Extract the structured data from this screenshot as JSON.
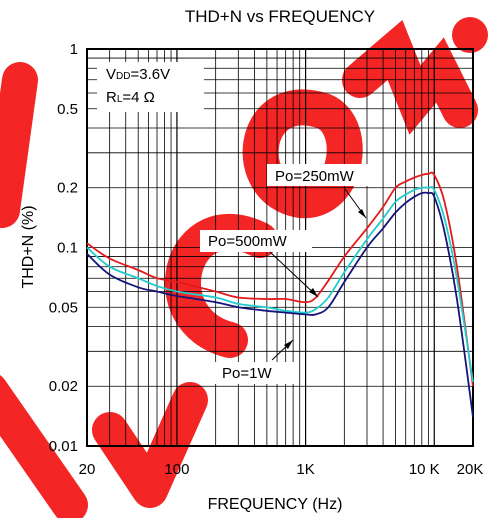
{
  "chart_data": {
    "type": "line",
    "title": "THD+N vs FREQUENCY",
    "xlabel": "FREQUENCY (Hz)",
    "ylabel": "THD+N (%)",
    "x_scale": "log",
    "y_scale": "log",
    "xlim": [
      20,
      20000
    ],
    "ylim": [
      0.01,
      1
    ],
    "x_ticks": [
      {
        "value": 20,
        "label": "20"
      },
      {
        "value": 100,
        "label": "100"
      },
      {
        "value": 1000,
        "label": "1K"
      },
      {
        "value": 10000,
        "label": "10 K"
      },
      {
        "value": 20000,
        "label": "20K"
      }
    ],
    "y_ticks": [
      {
        "value": 1,
        "label": "1"
      },
      {
        "value": 0.5,
        "label": "0.5"
      },
      {
        "value": 0.2,
        "label": "0.2"
      },
      {
        "value": 0.1,
        "label": "0.1"
      },
      {
        "value": 0.05,
        "label": "0.05"
      },
      {
        "value": 0.02,
        "label": "0.02"
      },
      {
        "value": 0.01,
        "label": "0.01"
      }
    ],
    "grid": true,
    "conditions": [
      {
        "prefix": "V",
        "sub": "DD",
        "suffix": "=3.6V"
      },
      {
        "prefix": "R",
        "sub": "L",
        "suffix": "=4 Ω"
      }
    ],
    "series": [
      {
        "name": "Po=250mW",
        "color": "#e31a1c",
        "x": [
          20,
          30,
          50,
          70,
          100,
          200,
          300,
          500,
          700,
          1000,
          1200,
          1500,
          2000,
          3000,
          4000,
          5000,
          6000,
          7000,
          8000,
          9000,
          10000,
          12000,
          15000,
          20000
        ],
        "y": [
          0.105,
          0.088,
          0.077,
          0.07,
          0.067,
          0.06,
          0.056,
          0.055,
          0.055,
          0.053,
          0.056,
          0.068,
          0.09,
          0.125,
          0.16,
          0.2,
          0.215,
          0.225,
          0.232,
          0.235,
          0.232,
          0.17,
          0.08,
          0.02
        ]
      },
      {
        "name": "Po=500mW",
        "color": "#22cccc",
        "x": [
          20,
          30,
          50,
          70,
          100,
          200,
          300,
          500,
          700,
          1000,
          1200,
          1500,
          2000,
          3000,
          4000,
          5000,
          6000,
          7000,
          8000,
          9000,
          10000,
          12000,
          15000,
          20000
        ],
        "y": [
          0.1,
          0.08,
          0.07,
          0.064,
          0.06,
          0.056,
          0.052,
          0.05,
          0.048,
          0.047,
          0.049,
          0.056,
          0.075,
          0.11,
          0.14,
          0.17,
          0.185,
          0.195,
          0.2,
          0.2,
          0.195,
          0.14,
          0.07,
          0.021
        ]
      },
      {
        "name": "Po=1W",
        "color": "#14147a",
        "x": [
          20,
          30,
          50,
          70,
          100,
          200,
          300,
          500,
          700,
          1000,
          1200,
          1500,
          2000,
          3000,
          4000,
          5000,
          6000,
          7000,
          8000,
          9000,
          10000,
          12000,
          15000,
          20000
        ],
        "y": [
          0.093,
          0.073,
          0.063,
          0.06,
          0.057,
          0.053,
          0.05,
          0.048,
          0.047,
          0.046,
          0.046,
          0.05,
          0.067,
          0.1,
          0.125,
          0.15,
          0.168,
          0.18,
          0.188,
          0.188,
          0.18,
          0.12,
          0.055,
          0.014
        ]
      }
    ],
    "annotations": [
      {
        "text": "Po=250mW",
        "series": "Po=250mW"
      },
      {
        "text": "Po=500mW",
        "series": "Po=500mW"
      },
      {
        "text": "Po=1W",
        "series": "Po=1W"
      }
    ]
  }
}
